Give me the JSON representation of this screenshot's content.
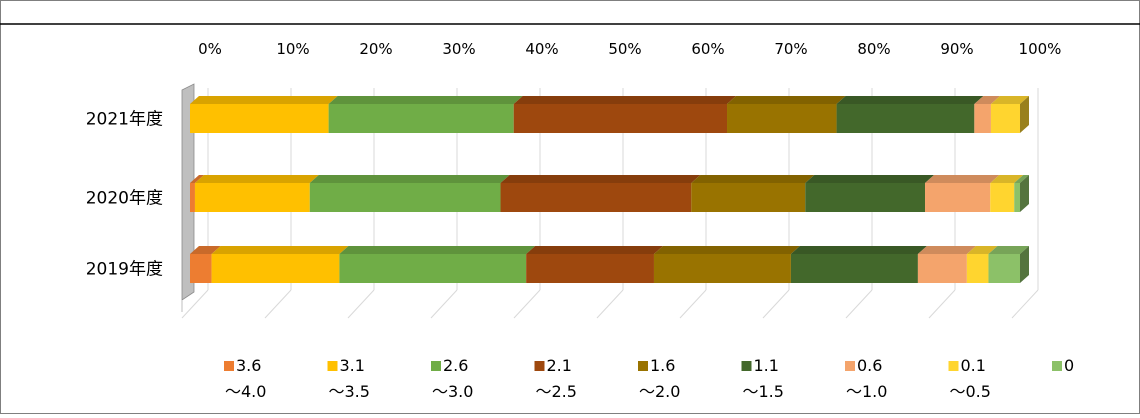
{
  "chart_data": {
    "type": "bar",
    "orientation": "horizontal",
    "stacked": "percent",
    "style": "3d",
    "title": "",
    "xlabel": "",
    "ylabel": "",
    "xlim": [
      0,
      100
    ],
    "x_ticks": [
      "0%",
      "10%",
      "20%",
      "30%",
      "40%",
      "50%",
      "60%",
      "70%",
      "80%",
      "90%",
      "100%"
    ],
    "x_axis_position": "top",
    "grid": true,
    "legend_position": "bottom",
    "categories": [
      "2021年度",
      "2020年度",
      "2019年度"
    ],
    "series": [
      {
        "name": "3.6\n～4.0",
        "color": "#ED7D31",
        "values": [
          0,
          0.6,
          2.6
        ]
      },
      {
        "name": "3.1\n～3.5",
        "color": "#FFC000",
        "values": [
          16.7,
          13.9,
          15.4
        ]
      },
      {
        "name": "2.6\n～3.0",
        "color": "#70AD47",
        "values": [
          22.3,
          23.1,
          22.5
        ]
      },
      {
        "name": "2.1\n～2.5",
        "color": "#9E480E",
        "values": [
          25.7,
          23.1,
          15.4
        ]
      },
      {
        "name": "1.6\n～2.0",
        "color": "#997300",
        "values": [
          13.2,
          13.8,
          16.5
        ]
      },
      {
        "name": "1.1\n～1.5",
        "color": "#43682B",
        "values": [
          16.6,
          14.5,
          15.3
        ]
      },
      {
        "name": "0.6\n～1.0",
        "color": "#F4A46C",
        "values": [
          2.0,
          7.9,
          5.9
        ]
      },
      {
        "name": "0.1\n～0.5",
        "color": "#FFD52F",
        "values": [
          3.5,
          2.9,
          2.6
        ]
      },
      {
        "name": "0",
        "color": "#8CC168",
        "values": [
          0,
          0.7,
          3.8
        ]
      }
    ]
  }
}
